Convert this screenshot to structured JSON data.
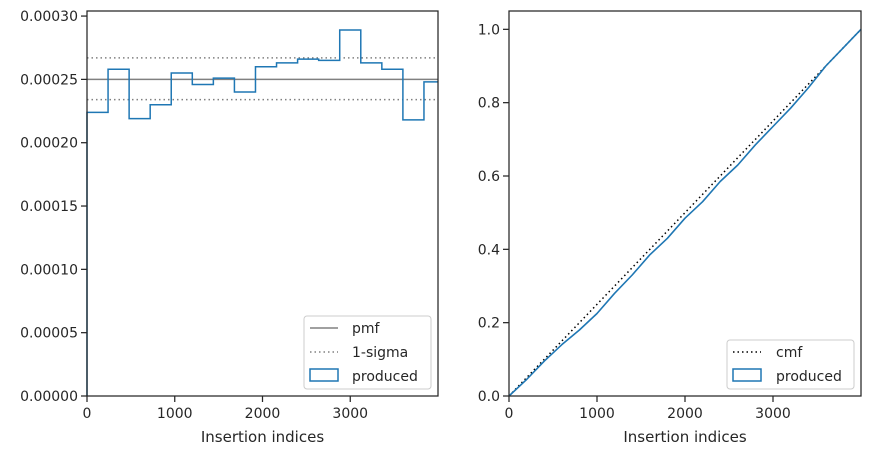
{
  "chart_data": [
    {
      "type": "step",
      "title": "",
      "xlabel": "Insertion indices",
      "ylabel": "",
      "xlim": [
        0,
        4000
      ],
      "ylim": [
        0,
        0.000304
      ],
      "xticks": [
        0,
        1000,
        2000,
        3000
      ],
      "xtick_labels": [
        "0",
        "1000",
        "2000",
        "3000"
      ],
      "yticks": [
        0,
        5e-05,
        0.0001,
        0.00015,
        0.0002,
        0.00025,
        0.0003
      ],
      "ytick_labels": [
        "0.00000",
        "0.00005",
        "0.00010",
        "0.00015",
        "0.00020",
        "0.00025",
        "0.00030"
      ],
      "legend_position": "bottom-right",
      "series": [
        {
          "name": "pmf",
          "style": "solid",
          "color": "#808080",
          "y": 0.00025
        },
        {
          "name": "1-sigma",
          "style": "dotted",
          "color": "#808080",
          "y": [
            0.000267,
            0.000234
          ]
        },
        {
          "name": "produced",
          "style": "step",
          "color": "#1f77b4",
          "bin_edges": [
            0,
            240,
            480,
            720,
            960,
            1200,
            1440,
            1680,
            1920,
            2160,
            2400,
            2640,
            2880,
            3120,
            3360,
            3600,
            3840,
            4000
          ],
          "values": [
            0.000224,
            0.000258,
            0.000219,
            0.00023,
            0.000255,
            0.000246,
            0.000251,
            0.00024,
            0.00026,
            0.000263,
            0.000266,
            0.000265,
            0.000289,
            0.000263,
            0.000258,
            0.000218,
            0.000248
          ]
        }
      ]
    },
    {
      "type": "line",
      "title": "",
      "xlabel": "Insertion indices",
      "ylabel": "",
      "xlim": [
        0,
        4000
      ],
      "ylim": [
        0,
        1.05
      ],
      "xticks": [
        0,
        1000,
        2000,
        3000
      ],
      "xtick_labels": [
        "0",
        "1000",
        "2000",
        "3000"
      ],
      "yticks": [
        0,
        0.2,
        0.4,
        0.6,
        0.8,
        1.0
      ],
      "ytick_labels": [
        "0.0",
        "0.2",
        "0.4",
        "0.6",
        "0.8",
        "1.0"
      ],
      "legend_position": "bottom-right",
      "series": [
        {
          "name": "cmf",
          "style": "dotted",
          "color": "#000000",
          "x": [
            0,
            4000
          ],
          "y": [
            0,
            1
          ]
        },
        {
          "name": "produced",
          "style": "step",
          "color": "#1f77b4",
          "x": [
            0,
            200,
            400,
            600,
            800,
            1000,
            1200,
            1400,
            1600,
            1800,
            2000,
            2200,
            2400,
            2600,
            2800,
            3000,
            3200,
            3400,
            3600,
            3800,
            4000
          ],
          "y": [
            0,
            0.045,
            0.095,
            0.14,
            0.18,
            0.225,
            0.28,
            0.33,
            0.385,
            0.43,
            0.485,
            0.53,
            0.585,
            0.63,
            0.685,
            0.735,
            0.785,
            0.84,
            0.9,
            0.95,
            1.0
          ]
        }
      ]
    }
  ]
}
